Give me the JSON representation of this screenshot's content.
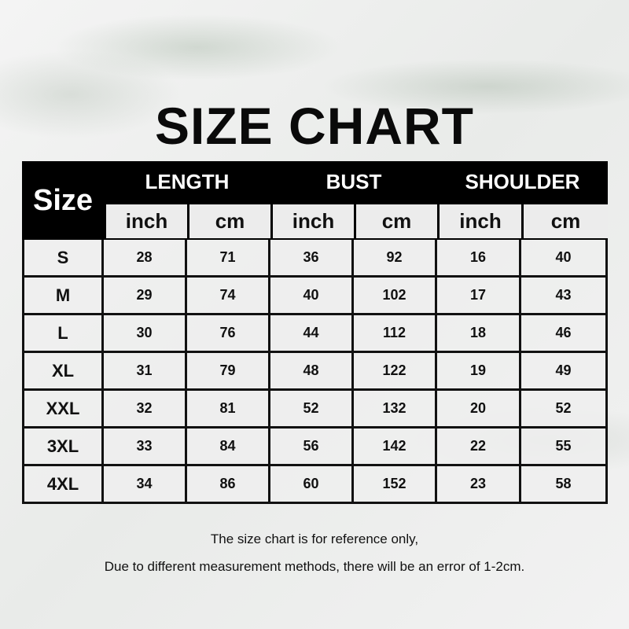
{
  "title": "SIZE CHART",
  "table": {
    "size_header": "Size",
    "groups": [
      "LENGTH",
      "BUST",
      "SHOULDER"
    ],
    "units": [
      "inch",
      "cm",
      "inch",
      "cm",
      "inch",
      "cm"
    ],
    "rows": [
      [
        "S",
        "28",
        "71",
        "36",
        "92",
        "16",
        "40"
      ],
      [
        "M",
        "29",
        "74",
        "40",
        "102",
        "17",
        "43"
      ],
      [
        "L",
        "30",
        "76",
        "44",
        "112",
        "18",
        "46"
      ],
      [
        "XL",
        "31",
        "79",
        "48",
        "122",
        "19",
        "49"
      ],
      [
        "XXL",
        "32",
        "81",
        "52",
        "132",
        "20",
        "52"
      ],
      [
        "3XL",
        "33",
        "84",
        "56",
        "142",
        "22",
        "55"
      ],
      [
        "4XL",
        "34",
        "86",
        "60",
        "152",
        "23",
        "58"
      ]
    ]
  },
  "notes": [
    "The size chart is for reference only,",
    "Due to different measurement methods, there will be an error of 1-2cm."
  ]
}
